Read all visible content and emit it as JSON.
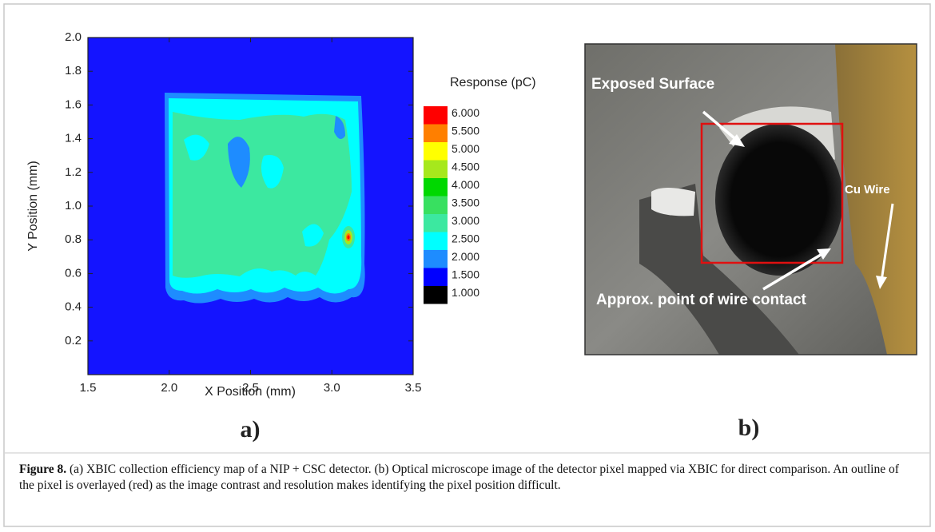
{
  "chart_data": {
    "type": "contour",
    "xlabel": "X Position (mm)",
    "ylabel": "Y Position (mm)",
    "xlim": [
      1.5,
      3.5
    ],
    "ylim": [
      0,
      2
    ],
    "xticks": [
      1.5,
      {
        "value": 2,
        "label": "2.0"
      },
      2.5,
      {
        "value": 3,
        "label": "3.0"
      },
      3.5
    ],
    "yticks": [
      0.2,
      0.4,
      0.6,
      0.8,
      {
        "value": 1,
        "label": "1.0"
      },
      1.2,
      1.4,
      1.6,
      1.8,
      {
        "value": 2,
        "label": "2.0"
      }
    ],
    "colorbar_label": "Response (pC)",
    "levels": [
      {
        "value": 6,
        "label": "6.000"
      },
      {
        "value": 5.5,
        "label": "5.500"
      },
      {
        "value": 5,
        "label": "5.000"
      },
      {
        "value": 4.5,
        "label": "4.500"
      },
      {
        "value": 4,
        "label": "4.000"
      },
      {
        "value": 3.5,
        "label": "3.500"
      },
      {
        "value": 3,
        "label": "3.000"
      },
      {
        "value": 2.5,
        "label": "2.500"
      },
      {
        "value": 2,
        "label": "2.000"
      },
      {
        "value": 1.5,
        "label": "1.500"
      },
      {
        "value": 1,
        "label": "1.000"
      }
    ],
    "level_colors": [
      "#ff0000",
      "#ff7f00",
      "#ffff00",
      "#a6e81c",
      "#00d800",
      "#38e060",
      "#3ce8a0",
      "#00ffff",
      "#1e8cff",
      "#0000ff",
      "#000000"
    ]
  },
  "panel_a_label": "a)",
  "panel_b_label": "b)",
  "image_annotations": {
    "exposed": "Exposed Surface",
    "wire": "Cu Wire",
    "contact": "Approx. point of wire contact"
  },
  "caption": {
    "label": "Figure 8.",
    "text": "(a) XBIC collection efficiency map of a NIP + CSC detector. (b) Optical microscope image of the detector pixel mapped via XBIC for direct comparison. An outline of the pixel is overlayed (red) as the image contrast and resolution makes identifying the pixel position difficult."
  }
}
